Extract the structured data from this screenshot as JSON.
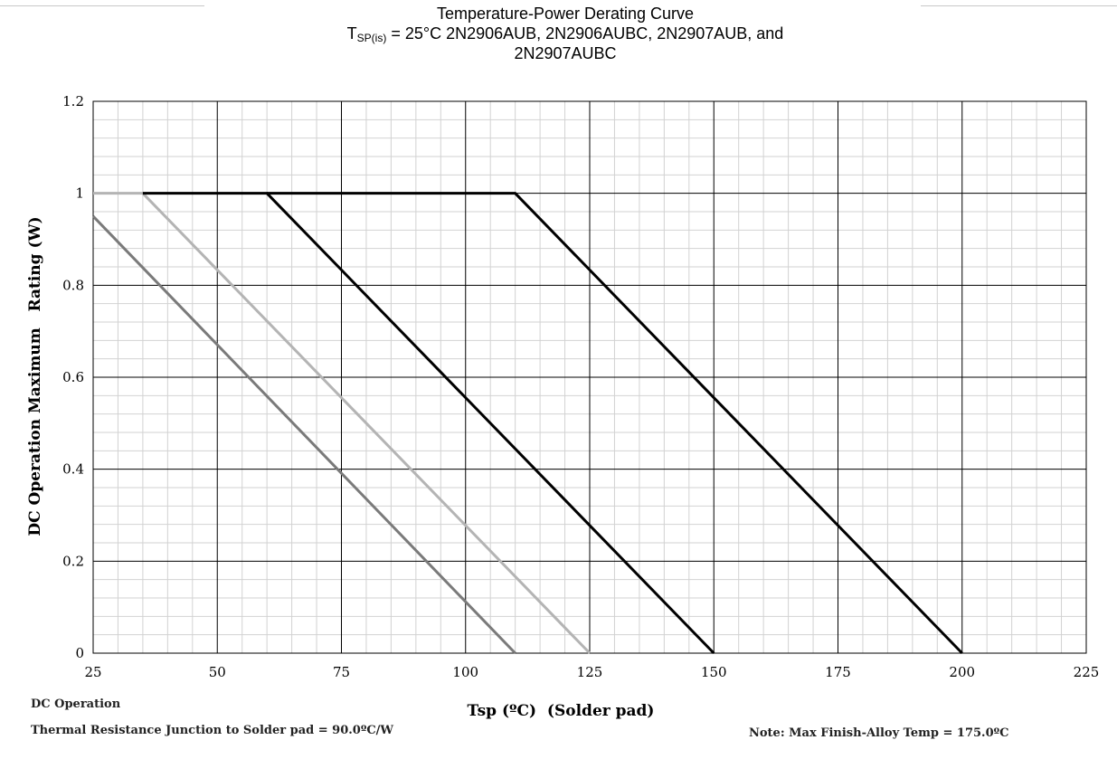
{
  "title": {
    "line1": "Temperature-Power Derating Curve",
    "line2_prefix": "T",
    "line2_sub": "SP(is)",
    "line2_rest": " = 25°C 2N2906AUB, 2N2906AUBC, 2N2907AUB, and",
    "line3": "2N2907AUBC"
  },
  "footnotes": {
    "dc_operation": "DC Operation",
    "thermal_resistance": "Thermal Resistance Junction to Solder pad = 90.0ºC/W",
    "note": "Note: Max Finish-Alloy Temp = 175.0ºC"
  },
  "chart_data": {
    "type": "line",
    "xlabel": "Tsp (ºC)  (Solder pad)",
    "ylabel": "DC Operation Maximum   Rating (W)",
    "xlim": [
      25,
      225
    ],
    "ylim": [
      0,
      1.2
    ],
    "x_ticks": [
      25,
      50,
      75,
      100,
      125,
      150,
      175,
      200,
      225
    ],
    "y_ticks": [
      0,
      0.2,
      0.4,
      0.6,
      0.8,
      1,
      1.2
    ],
    "y_tick_labels": [
      "0",
      "0.2",
      "0.4",
      "0.6",
      "0.8",
      "1",
      "1.2"
    ],
    "grid": true,
    "series": [
      {
        "color": "#7a7a7a",
        "points": [
          [
            25,
            0.95
          ],
          [
            110,
            0
          ]
        ]
      },
      {
        "color": "#b4b4b4",
        "points": [
          [
            25,
            1
          ],
          [
            35,
            1
          ],
          [
            125,
            0
          ]
        ]
      },
      {
        "color": "#000000",
        "points": [
          [
            35,
            1
          ],
          [
            60,
            1
          ],
          [
            150,
            0
          ]
        ]
      },
      {
        "color": "#000000",
        "points": [
          [
            60,
            1
          ],
          [
            110,
            1
          ],
          [
            200,
            0
          ]
        ]
      }
    ]
  }
}
